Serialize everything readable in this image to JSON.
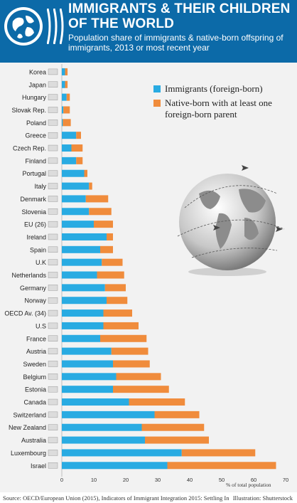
{
  "header": {
    "title": "IMMIGRANTS & THEIR CHILDREN OF THE WORLD",
    "subtitle": "Population share of immigrants & native-born offspring of immigrants, 2013 or most recent year"
  },
  "legend": {
    "immigrants": "Immigrants (foreign-born)",
    "native_born": "Native-born with at least one foreign-born parent"
  },
  "footer": {
    "source": "Source: OECD/European Union (2015), Indicators of Immigrant Integration 2015: Settling In",
    "credit": "Illustration: Shutterstock"
  },
  "colors": {
    "immigrants": "#29abe2",
    "native_born": "#f08c3c",
    "header": "#0c6aa8"
  },
  "chart_data": {
    "type": "bar",
    "orientation": "horizontal",
    "stacked": true,
    "categories": [
      "Korea",
      "Japan",
      "Hungary",
      "Slovak Rep.",
      "Poland",
      "Greece",
      "Czech Rep.",
      "Finland",
      "Portugal",
      "Italy",
      "Denmark",
      "Slovenia",
      "EU (26)",
      "Ireland",
      "Spain",
      "U.K",
      "Netherlands",
      "Germany",
      "Norway",
      "OECD Av. (34)",
      "U.S",
      "France",
      "Austria",
      "Sweden",
      "Belgium",
      "Estonia",
      "Canada",
      "Switzerland",
      "New Zealand",
      "Australia",
      "Luxembourg",
      "Israel"
    ],
    "series": [
      {
        "name": "Immigrants (foreign-born)",
        "values": [
          1,
          1,
          1.5,
          0.5,
          0.3,
          4.5,
          3,
          4.5,
          7,
          8.5,
          7.5,
          8.5,
          10,
          14,
          12,
          12.5,
          11,
          13.5,
          14,
          13,
          13,
          12,
          15.5,
          16,
          17,
          16,
          21,
          29,
          25,
          26,
          37.5,
          33
        ]
      },
      {
        "name": "Native-born with at least one foreign-born parent",
        "values": [
          0.8,
          0.8,
          1,
          2,
          2.5,
          1.5,
          3.5,
          2,
          1,
          1,
          7,
          7,
          6,
          2,
          4,
          6.5,
          8.5,
          6.5,
          6.5,
          9,
          11,
          14.5,
          11.5,
          11.5,
          14,
          17.5,
          17.5,
          14,
          19.5,
          20,
          23,
          34
        ]
      }
    ],
    "x_ticks": [
      "0",
      "10",
      "20",
      "30",
      "40",
      "50",
      "60",
      "70"
    ],
    "xlim": [
      0,
      70
    ],
    "xlabel": "% of total population"
  }
}
